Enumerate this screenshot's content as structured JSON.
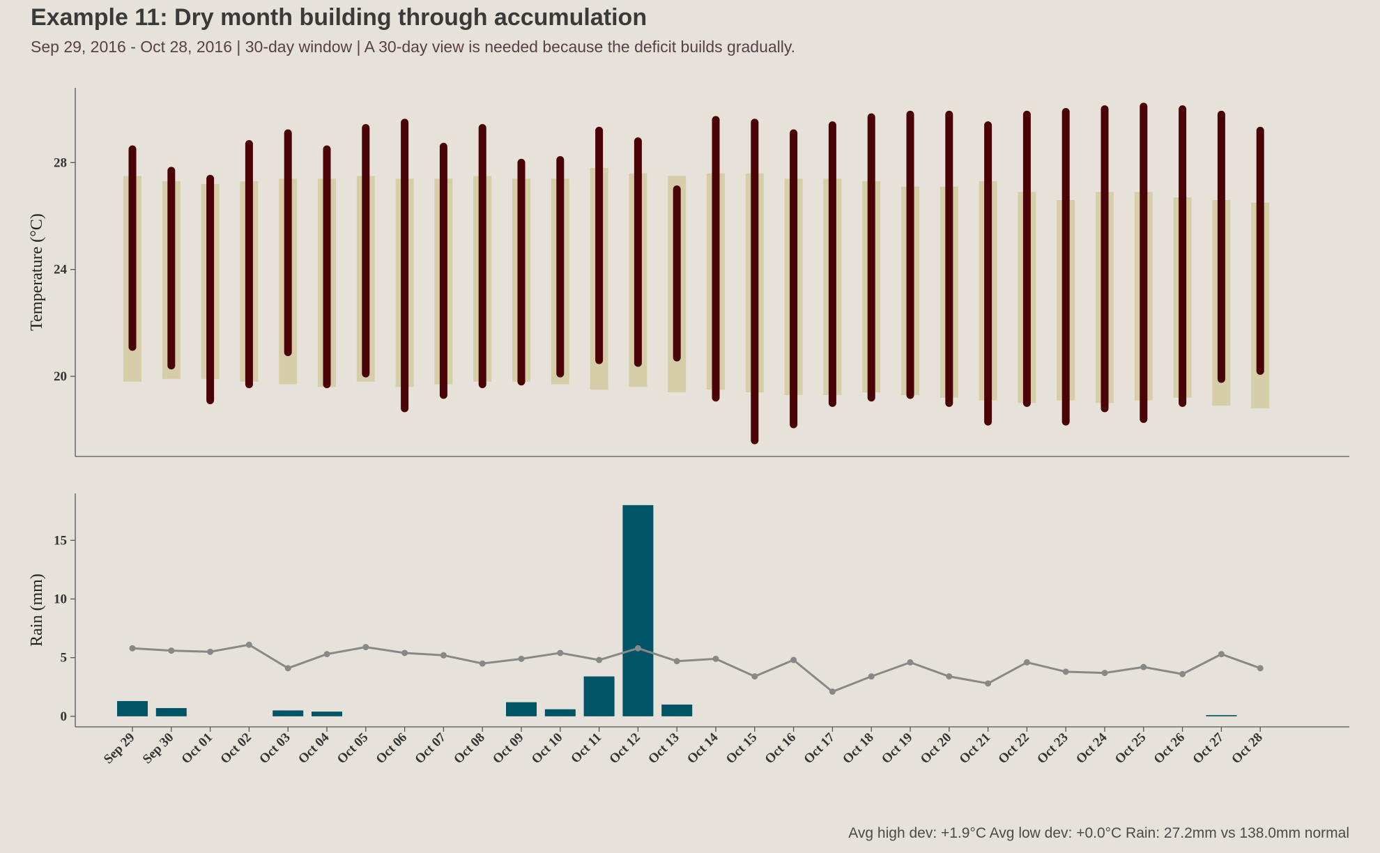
{
  "title": "Example 11: Dry month building through accumulation",
  "subtitle": "Sep 29, 2016 - Oct 28, 2016  |  30-day window  |  A 30-day view is needed because the deficit builds gradually.",
  "footer": "Avg high dev: +1.9°C   Avg low dev: +0.0°C   Rain: 27.2mm vs 138.0mm normal",
  "colors": {
    "background": "#e6e2da",
    "observed_range": "#4a0306",
    "normal_range": "#d6cda9",
    "rain_bar": "#005466",
    "normal_rain_line": "#888888",
    "axis": "#555555"
  },
  "chart_data": [
    {
      "type": "range-bar",
      "ylabel": "Temperature (°C)",
      "yticks": [
        20,
        24,
        28
      ],
      "ylim": [
        17,
        30.8
      ],
      "categories": [
        "Sep 29",
        "Sep 30",
        "Oct 01",
        "Oct 02",
        "Oct 03",
        "Oct 04",
        "Oct 05",
        "Oct 06",
        "Oct 07",
        "Oct 08",
        "Oct 09",
        "Oct 10",
        "Oct 11",
        "Oct 12",
        "Oct 13",
        "Oct 14",
        "Oct 15",
        "Oct 16",
        "Oct 17",
        "Oct 18",
        "Oct 19",
        "Oct 20",
        "Oct 21",
        "Oct 22",
        "Oct 23",
        "Oct 24",
        "Oct 25",
        "Oct 26",
        "Oct 27",
        "Oct 28"
      ],
      "series": [
        {
          "kind": "normal",
          "low": [
            19.8,
            19.9,
            19.9,
            19.8,
            19.7,
            19.6,
            19.8,
            19.6,
            19.7,
            19.8,
            19.8,
            19.7,
            19.5,
            19.6,
            19.4,
            19.5,
            19.4,
            19.3,
            19.3,
            19.4,
            19.3,
            19.2,
            19.1,
            19.0,
            19.1,
            19.0,
            19.1,
            19.2,
            18.9,
            18.8
          ],
          "high": [
            27.5,
            27.3,
            27.2,
            27.3,
            27.4,
            27.4,
            27.5,
            27.4,
            27.4,
            27.5,
            27.4,
            27.4,
            27.8,
            27.6,
            27.5,
            27.6,
            27.6,
            27.4,
            27.4,
            27.3,
            27.1,
            27.1,
            27.3,
            26.9,
            26.6,
            26.9,
            26.9,
            26.7,
            26.6,
            26.5
          ]
        },
        {
          "kind": "observed",
          "low": [
            21.1,
            20.4,
            19.1,
            19.7,
            20.9,
            19.7,
            20.1,
            18.8,
            19.3,
            19.7,
            19.8,
            20.1,
            20.6,
            20.5,
            20.7,
            19.2,
            17.6,
            18.2,
            19.0,
            19.2,
            19.3,
            19.0,
            18.3,
            19.0,
            18.3,
            18.8,
            18.4,
            19.0,
            19.9,
            20.2
          ],
          "high": [
            28.5,
            27.7,
            27.4,
            28.7,
            29.1,
            28.5,
            29.3,
            29.5,
            28.6,
            29.3,
            28.0,
            28.1,
            29.2,
            28.8,
            27.0,
            29.6,
            29.5,
            29.1,
            29.4,
            29.7,
            29.8,
            29.8,
            29.4,
            29.8,
            29.9,
            30.0,
            30.1,
            30.0,
            29.8,
            29.2
          ]
        }
      ]
    },
    {
      "type": "bar",
      "ylabel": "Rain (mm)",
      "yticks": [
        0,
        5,
        10,
        15
      ],
      "ylim": [
        -0.9,
        19
      ],
      "categories": [
        "Sep 29",
        "Sep 30",
        "Oct 01",
        "Oct 02",
        "Oct 03",
        "Oct 04",
        "Oct 05",
        "Oct 06",
        "Oct 07",
        "Oct 08",
        "Oct 09",
        "Oct 10",
        "Oct 11",
        "Oct 12",
        "Oct 13",
        "Oct 14",
        "Oct 15",
        "Oct 16",
        "Oct 17",
        "Oct 18",
        "Oct 19",
        "Oct 20",
        "Oct 21",
        "Oct 22",
        "Oct 23",
        "Oct 24",
        "Oct 25",
        "Oct 26",
        "Oct 27",
        "Oct 28"
      ],
      "series": [
        {
          "kind": "observed_rain",
          "values": [
            1.3,
            0.7,
            0,
            0,
            0.5,
            0.4,
            0,
            0,
            0,
            0,
            1.2,
            0.6,
            3.4,
            18.0,
            1.0,
            0,
            0,
            0,
            0,
            0,
            0,
            0,
            0,
            0,
            0,
            0,
            0,
            0,
            0.1,
            0
          ]
        },
        {
          "kind": "normal_rain",
          "values": [
            5.8,
            5.6,
            5.5,
            6.1,
            4.1,
            5.3,
            5.9,
            5.4,
            5.2,
            4.5,
            4.9,
            5.4,
            4.8,
            5.8,
            4.7,
            4.9,
            3.4,
            4.8,
            2.1,
            3.4,
            4.6,
            3.4,
            2.8,
            4.6,
            3.8,
            3.7,
            4.2,
            3.6,
            5.3,
            4.1
          ]
        }
      ]
    }
  ]
}
